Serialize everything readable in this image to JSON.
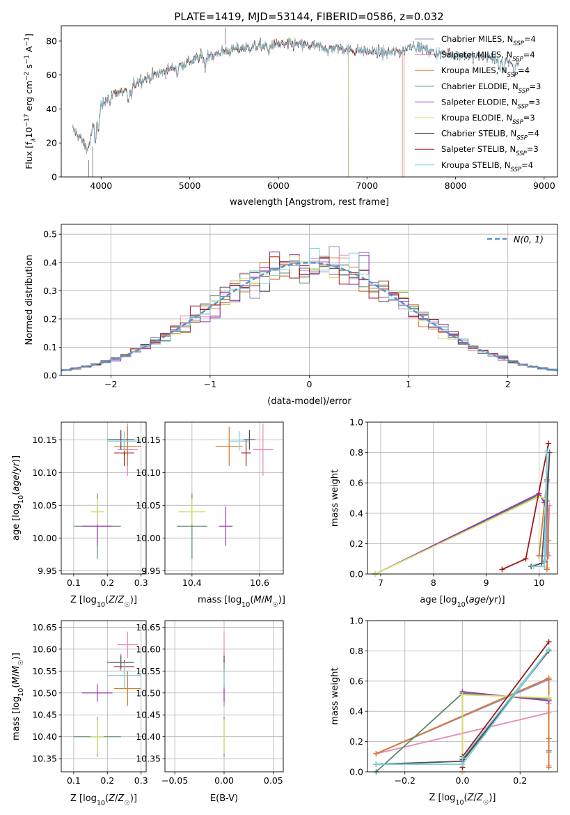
{
  "figure_title": "PLATE=1419, MJD=53144, FIBERID=0586, z=0.032",
  "colors": {
    "chab_miles": "#9b8ac7",
    "salp_miles": "#e888b8",
    "krou_miles": "#d67a2c",
    "chab_elodie": "#5a8a68",
    "salp_elodie": "#9b36b8",
    "krou_elodie": "#d4e06a",
    "chab_stelib": "#50505a",
    "salp_stelib": "#a01818",
    "krou_stelib": "#7fcfdc",
    "gaussian": "#5b8fd6",
    "grid": "#b0b0b0"
  },
  "chart_data": [
    {
      "id": "spectrum",
      "type": "line",
      "xlabel": "wavelength [Angstrom, rest frame]",
      "ylabel_parts": [
        "Flux [f",
        "λ",
        "10",
        "−17",
        " erg cm",
        "−2",
        " s",
        "−1",
        " A",
        "−1",
        "]"
      ],
      "xlim": [
        3550,
        9150
      ],
      "ylim": [
        0,
        89
      ],
      "xticks": [
        4000,
        5000,
        6000,
        7000,
        8000,
        9000
      ],
      "yticks": [
        0,
        20,
        40,
        60,
        80
      ],
      "grid": false,
      "legend_loc": "upper right",
      "legend": [
        {
          "key": "chab_miles",
          "label": "Chabrier MILES, N",
          "sub": "SSP",
          "tail": "=4"
        },
        {
          "key": "salp_miles",
          "label": "Salpeter MILES, N",
          "sub": "SSP",
          "tail": "=4"
        },
        {
          "key": "krou_miles",
          "label": "Kroupa MILES, N",
          "sub": "SSP",
          "tail": "=4"
        },
        {
          "key": "chab_elodie",
          "label": "Chabrier ELODIE, N",
          "sub": "SSP",
          "tail": "=3"
        },
        {
          "key": "salp_elodie",
          "label": "Salpeter ELODIE, N",
          "sub": "SSP",
          "tail": "=3"
        },
        {
          "key": "krou_elodie",
          "label": "Kroupa ELODIE, N",
          "sub": "SSP",
          "tail": "=3"
        },
        {
          "key": "chab_stelib",
          "label": "Chabrier STELIB, N",
          "sub": "SSP",
          "tail": "=4"
        },
        {
          "key": "salp_stelib",
          "label": "Salpeter STELIB, N",
          "sub": "SSP",
          "tail": "=3"
        },
        {
          "key": "krou_stelib",
          "label": "Kroupa STELIB, N",
          "sub": "SSP",
          "tail": "=4"
        }
      ],
      "continuum": [
        [
          3680,
          28
        ],
        [
          3750,
          24
        ],
        [
          3850,
          16
        ],
        [
          3910,
          30
        ],
        [
          3970,
          38
        ],
        [
          4050,
          46
        ],
        [
          4150,
          50
        ],
        [
          4300,
          50
        ],
        [
          4400,
          56
        ],
        [
          4600,
          60
        ],
        [
          4800,
          64
        ],
        [
          5000,
          68
        ],
        [
          5200,
          72
        ],
        [
          5400,
          74
        ],
        [
          5600,
          76
        ],
        [
          5800,
          77
        ],
        [
          6000,
          78
        ],
        [
          6200,
          78
        ],
        [
          6400,
          77
        ],
        [
          6600,
          76
        ],
        [
          6800,
          75
        ],
        [
          7000,
          74
        ],
        [
          7200,
          73
        ],
        [
          7400,
          74
        ],
        [
          7500,
          78
        ],
        [
          7600,
          76
        ],
        [
          7800,
          73
        ],
        [
          8000,
          72
        ],
        [
          8200,
          71
        ],
        [
          8400,
          70
        ],
        [
          8600,
          68
        ],
        [
          8700,
          67
        ]
      ],
      "coverage_end": {
        "chab_miles": 7400,
        "salp_miles": 7400,
        "krou_miles": 7420,
        "chab_elodie": 6790,
        "salp_elodie": 6790,
        "krou_elodie": 6790,
        "chab_stelib": 8720,
        "salp_stelib": 8720,
        "krou_stelib": 8720
      }
    },
    {
      "id": "residual-hist",
      "type": "bar",
      "xlabel": "(data-model)/error",
      "ylabel": "Normed distribution",
      "xlim": [
        -2.5,
        2.5
      ],
      "ylim": [
        0,
        0.535
      ],
      "xticks": [
        -2,
        -1,
        0,
        1,
        2
      ],
      "xtick_labels": [
        "−2",
        "−1",
        "0",
        "1",
        "2"
      ],
      "yticks": [
        0.0,
        0.1,
        0.2,
        0.3,
        0.4,
        0.5
      ],
      "grid": true,
      "legend_loc": "upper right",
      "gaussian_label": "N(0, 1)",
      "bin_width": 0.1
    },
    {
      "id": "age-vs-Z",
      "type": "scatter",
      "xlabel": "Z [log10(Z/Z☉)]",
      "ylabel": "age  [log10(age/yr)]",
      "xlim": [
        0.063,
        0.315
      ],
      "ylim": [
        9.945,
        10.177
      ],
      "xticks": [
        0.1,
        0.2,
        0.3
      ],
      "yticks": [
        9.95,
        10.0,
        10.05,
        10.1,
        10.15
      ],
      "grid": true
    },
    {
      "id": "age-vs-mass",
      "type": "scatter",
      "xlabel": "mass [log10(M/M☉)]",
      "xlim": [
        10.32,
        10.67
      ],
      "ylim": [
        9.945,
        10.177
      ],
      "xticks": [
        10.4,
        10.6
      ],
      "yticks": [
        9.95,
        10.0,
        10.05,
        10.1,
        10.15
      ],
      "grid": true
    },
    {
      "id": "weight-vs-age",
      "type": "line",
      "xlabel": "age  [log10(age/yr)]",
      "ylabel": "mass weight",
      "xlim": [
        6.75,
        10.35
      ],
      "ylim": [
        0,
        1
      ],
      "xticks": [
        7,
        8,
        9,
        10
      ],
      "yticks": [
        0.0,
        0.2,
        0.4,
        0.6,
        0.8,
        1.0
      ],
      "grid": true
    },
    {
      "id": "mass-vs-Z",
      "type": "scatter",
      "xlabel": "Z [log10(Z/Z☉)]",
      "ylabel": "mass [log10(M/M☉)]",
      "xlim": [
        0.063,
        0.315
      ],
      "ylim": [
        10.32,
        10.665
      ],
      "xticks": [
        0.1,
        0.2,
        0.3
      ],
      "yticks": [
        10.35,
        10.4,
        10.45,
        10.5,
        10.55,
        10.6,
        10.65
      ],
      "grid": true
    },
    {
      "id": "mass-vs-ebv",
      "type": "scatter",
      "xlabel": "E(B-V)",
      "xlim": [
        -0.06,
        0.06
      ],
      "ylim": [
        10.32,
        10.665
      ],
      "xticks": [
        -0.05,
        0.0,
        0.05
      ],
      "xtick_labels": [
        "−0.05",
        "0.00",
        "0.05"
      ],
      "yticks": [
        10.35,
        10.4,
        10.45,
        10.5,
        10.55,
        10.6,
        10.65
      ],
      "grid": true
    },
    {
      "id": "weight-vs-Z",
      "type": "line",
      "xlabel": "Z [log10(Z/Z☉)]",
      "ylabel": "mass weight",
      "xlim": [
        -0.33,
        0.33
      ],
      "ylim": [
        0,
        1
      ],
      "xticks": [
        -0.2,
        0.0,
        0.2
      ],
      "xtick_labels": [
        "−0.2",
        "0.0",
        "0.2"
      ],
      "yticks": [
        0.0,
        0.2,
        0.4,
        0.6,
        0.8,
        1.0
      ],
      "grid": true
    }
  ],
  "fits": [
    {
      "key": "chab_miles",
      "Z": 0.24,
      "Zerr": 0.03,
      "age": 10.15,
      "ageerr": 0.015,
      "mass": 10.57,
      "masserr": 0.02
    },
    {
      "key": "salp_miles",
      "Z": 0.26,
      "Zerr": 0.03,
      "age": 10.135,
      "ageerr": 0.04,
      "mass": 10.61,
      "masserr": 0.03
    },
    {
      "key": "krou_miles",
      "Z": 0.26,
      "Zerr": 0.04,
      "age": 10.14,
      "ageerr": 0.03,
      "mass": 10.51,
      "masserr": 0.04
    },
    {
      "key": "chab_elodie",
      "Z": 0.17,
      "Zerr": 0.07,
      "age": 10.018,
      "ageerr": 0.05,
      "mass": 10.4,
      "masserr": 0.045
    },
    {
      "key": "salp_elodie",
      "Z": 0.17,
      "Zerr": 0.045,
      "age": 10.018,
      "ageerr": 0.03,
      "mass": 10.5,
      "masserr": 0.02
    },
    {
      "key": "krou_elodie",
      "Z": 0.17,
      "Zerr": 0.02,
      "age": 10.04,
      "ageerr": 0.02,
      "mass": 10.4,
      "masserr": 0.04
    },
    {
      "key": "chab_stelib",
      "Z": 0.24,
      "Zerr": 0.04,
      "age": 10.15,
      "ageerr": 0.015,
      "mass": 10.57,
      "masserr": 0.015
    },
    {
      "key": "salp_stelib",
      "Z": 0.25,
      "Zerr": 0.03,
      "age": 10.13,
      "ageerr": 0.02,
      "mass": 10.56,
      "masserr": 0.015
    },
    {
      "key": "krou_stelib",
      "Z": 0.25,
      "Zerr": 0.05,
      "age": 10.148,
      "ageerr": 0.015,
      "mass": 10.54,
      "masserr": 0.03
    }
  ],
  "ssp": [
    {
      "key": "chab_miles",
      "age": [
        10.12,
        10.15,
        10.15,
        10.15
      ],
      "Z": [
        -0.3,
        0.3,
        0.3,
        0.3
      ],
      "w": [
        0.12,
        0.61,
        0.13,
        0.14
      ]
    },
    {
      "key": "salp_miles",
      "age": [
        10.18,
        10.16,
        10.2,
        10.15
      ],
      "Z": [
        -0.3,
        0.3,
        0.3,
        0.3
      ],
      "w": [
        0.12,
        0.39,
        0.45,
        0.04
      ]
    },
    {
      "key": "krou_miles",
      "age": [
        10.0,
        10.15,
        10.18,
        10.15
      ],
      "Z": [
        -0.3,
        0.3,
        0.3,
        0.3
      ],
      "w": [
        0.12,
        0.62,
        0.22,
        0.03
      ]
    },
    {
      "key": "chab_elodie",
      "age": [
        6.9,
        10.0,
        10.15
      ],
      "Z": [
        -0.3,
        0.0,
        0.3
      ],
      "w": [
        0.0,
        0.52,
        0.48
      ]
    },
    {
      "key": "salp_elodie",
      "age": [
        6.9,
        10.0,
        10.1
      ],
      "Z": [
        0.0,
        0.0,
        0.3
      ],
      "w": [
        0.0,
        0.53,
        0.47
      ]
    },
    {
      "key": "krou_elodie",
      "age": [
        6.9,
        10.0,
        10.15
      ],
      "Z": [
        0.0,
        0.0,
        0.3
      ],
      "w": [
        0.0,
        0.51,
        0.49
      ]
    },
    {
      "key": "chab_stelib",
      "age": [
        9.85,
        10.05,
        10.2,
        10.1
      ],
      "Z": [
        -0.3,
        0.0,
        0.3,
        0.0
      ],
      "w": [
        0.05,
        0.07,
        0.8,
        0.08
      ]
    },
    {
      "key": "salp_stelib",
      "age": [
        9.3,
        9.75,
        10.18
      ],
      "Z": [
        0.0,
        0.0,
        0.3
      ],
      "w": [
        0.03,
        0.1,
        0.86
      ]
    },
    {
      "key": "krou_stelib",
      "age": [
        9.9,
        10.1,
        10.15,
        10.12
      ],
      "Z": [
        -0.3,
        0.0,
        0.3,
        0.0
      ],
      "w": [
        0.05,
        0.05,
        0.81,
        0.09
      ]
    }
  ]
}
